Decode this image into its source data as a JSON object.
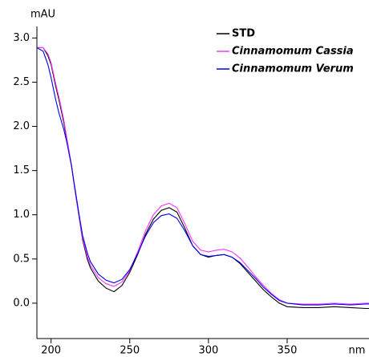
{
  "chart_data": {
    "type": "line",
    "y_label": "mAU",
    "x_label": "nm",
    "x": [
      191,
      195,
      198,
      200,
      203,
      205,
      208,
      210,
      213,
      215,
      218,
      220,
      223,
      225,
      230,
      235,
      240,
      245,
      250,
      255,
      260,
      265,
      270,
      275,
      280,
      285,
      290,
      295,
      300,
      305,
      310,
      315,
      320,
      325,
      330,
      335,
      340,
      345,
      350,
      360,
      370,
      380,
      390,
      400,
      402
    ],
    "series": [
      {
        "name": "STD",
        "color": "#000000",
        "values": [
          2.89,
          2.89,
          2.8,
          2.7,
          2.45,
          2.3,
          2.05,
          1.85,
          1.55,
          1.3,
          0.95,
          0.72,
          0.5,
          0.4,
          0.25,
          0.17,
          0.13,
          0.2,
          0.35,
          0.55,
          0.78,
          0.95,
          1.05,
          1.08,
          1.03,
          0.85,
          0.65,
          0.55,
          0.52,
          0.54,
          0.55,
          0.52,
          0.45,
          0.35,
          0.25,
          0.15,
          0.07,
          0.0,
          -0.04,
          -0.05,
          -0.05,
          -0.04,
          -0.05,
          -0.06,
          -0.06
        ]
      },
      {
        "name": "Cinnamomum Cassia",
        "color": "#ff33ff",
        "values": [
          2.89,
          2.89,
          2.82,
          2.72,
          2.48,
          2.33,
          2.08,
          1.87,
          1.56,
          1.3,
          0.96,
          0.74,
          0.53,
          0.43,
          0.29,
          0.22,
          0.19,
          0.24,
          0.37,
          0.58,
          0.82,
          1.0,
          1.1,
          1.13,
          1.08,
          0.9,
          0.7,
          0.6,
          0.58,
          0.6,
          0.61,
          0.58,
          0.51,
          0.41,
          0.3,
          0.2,
          0.11,
          0.04,
          0.0,
          -0.01,
          -0.01,
          0.0,
          -0.01,
          0.0,
          0.0
        ]
      },
      {
        "name": "Cinnamomum Verum",
        "color": "#0000ee",
        "values": [
          2.89,
          2.85,
          2.7,
          2.55,
          2.3,
          2.15,
          1.97,
          1.82,
          1.55,
          1.32,
          0.98,
          0.77,
          0.57,
          0.47,
          0.33,
          0.26,
          0.23,
          0.27,
          0.38,
          0.56,
          0.76,
          0.91,
          0.99,
          1.01,
          0.96,
          0.82,
          0.65,
          0.55,
          0.53,
          0.54,
          0.55,
          0.52,
          0.46,
          0.37,
          0.28,
          0.18,
          0.1,
          0.03,
          0.0,
          -0.02,
          -0.02,
          -0.01,
          -0.02,
          -0.01,
          -0.01
        ]
      }
    ],
    "xlim": [
      191,
      402
    ],
    "xticks": [
      200,
      250,
      300,
      350
    ],
    "ylim": [
      -0.4,
      3.13
    ],
    "yticks": [
      {
        "value": 0,
        "label": "0.0"
      },
      0.5,
      {
        "value": 1,
        "label": "1.0"
      },
      1.5,
      {
        "value": 2,
        "label": "2.0"
      },
      2.5,
      {
        "value": 3,
        "label": "3.0"
      }
    ],
    "legend": "top-right"
  }
}
